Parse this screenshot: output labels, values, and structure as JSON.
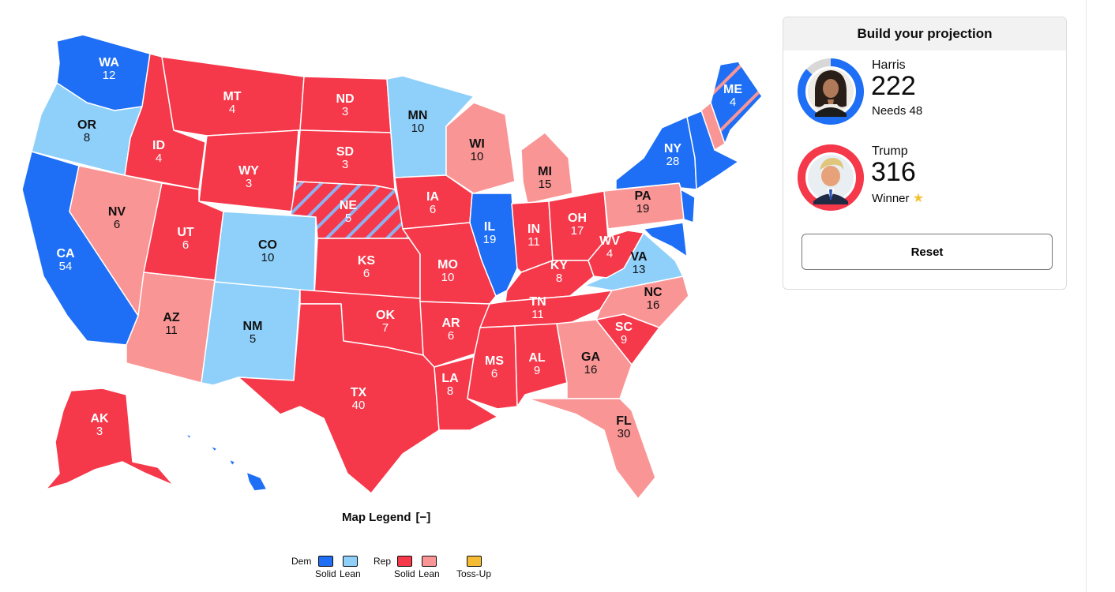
{
  "colors": {
    "dem_solid": "#1e6ff5",
    "dem_lean": "#8fd0fb",
    "rep_solid": "#f5384a",
    "rep_lean": "#fa9595",
    "toss_up": "#f5bb33",
    "stripe": "#8fb0ef"
  },
  "map": {
    "states": [
      {
        "abbr": "WA",
        "ev": "12",
        "rating": "dem_solid"
      },
      {
        "abbr": "OR",
        "ev": "8",
        "rating": "dem_lean"
      },
      {
        "abbr": "CA",
        "ev": "54",
        "rating": "dem_solid"
      },
      {
        "abbr": "NV",
        "ev": "6",
        "rating": "rep_lean"
      },
      {
        "abbr": "ID",
        "ev": "4",
        "rating": "rep_solid"
      },
      {
        "abbr": "MT",
        "ev": "4",
        "rating": "rep_solid"
      },
      {
        "abbr": "WY",
        "ev": "3",
        "rating": "rep_solid"
      },
      {
        "abbr": "UT",
        "ev": "6",
        "rating": "rep_solid"
      },
      {
        "abbr": "AZ",
        "ev": "11",
        "rating": "rep_lean"
      },
      {
        "abbr": "CO",
        "ev": "10",
        "rating": "dem_lean"
      },
      {
        "abbr": "NM",
        "ev": "5",
        "rating": "dem_lean"
      },
      {
        "abbr": "ND",
        "ev": "3",
        "rating": "rep_solid"
      },
      {
        "abbr": "SD",
        "ev": "3",
        "rating": "rep_solid"
      },
      {
        "abbr": "NE",
        "ev": "5",
        "rating": "rep_solid",
        "split": true
      },
      {
        "abbr": "KS",
        "ev": "6",
        "rating": "rep_solid"
      },
      {
        "abbr": "OK",
        "ev": "7",
        "rating": "rep_solid"
      },
      {
        "abbr": "TX",
        "ev": "40",
        "rating": "rep_solid"
      },
      {
        "abbr": "MN",
        "ev": "10",
        "rating": "dem_lean"
      },
      {
        "abbr": "IA",
        "ev": "6",
        "rating": "rep_solid"
      },
      {
        "abbr": "MO",
        "ev": "10",
        "rating": "rep_solid"
      },
      {
        "abbr": "AR",
        "ev": "6",
        "rating": "rep_solid"
      },
      {
        "abbr": "LA",
        "ev": "8",
        "rating": "rep_solid"
      },
      {
        "abbr": "WI",
        "ev": "10",
        "rating": "rep_lean"
      },
      {
        "abbr": "IL",
        "ev": "19",
        "rating": "dem_solid"
      },
      {
        "abbr": "MI",
        "ev": "15",
        "rating": "rep_lean"
      },
      {
        "abbr": "IN",
        "ev": "11",
        "rating": "rep_solid"
      },
      {
        "abbr": "OH",
        "ev": "17",
        "rating": "rep_solid"
      },
      {
        "abbr": "KY",
        "ev": "8",
        "rating": "rep_solid"
      },
      {
        "abbr": "TN",
        "ev": "11",
        "rating": "rep_solid"
      },
      {
        "abbr": "MS",
        "ev": "6",
        "rating": "rep_solid"
      },
      {
        "abbr": "AL",
        "ev": "9",
        "rating": "rep_solid"
      },
      {
        "abbr": "GA",
        "ev": "16",
        "rating": "rep_lean"
      },
      {
        "abbr": "FL",
        "ev": "30",
        "rating": "rep_lean"
      },
      {
        "abbr": "SC",
        "ev": "9",
        "rating": "rep_solid"
      },
      {
        "abbr": "NC",
        "ev": "16",
        "rating": "rep_lean"
      },
      {
        "abbr": "VA",
        "ev": "13",
        "rating": "dem_lean"
      },
      {
        "abbr": "WV",
        "ev": "4",
        "rating": "rep_solid"
      },
      {
        "abbr": "PA",
        "ev": "19",
        "rating": "rep_lean"
      },
      {
        "abbr": "NY",
        "ev": "28",
        "rating": "dem_solid"
      },
      {
        "abbr": "ME",
        "ev": "4",
        "rating": "dem_solid",
        "split": true
      },
      {
        "abbr": "AK",
        "ev": "3",
        "rating": "rep_solid"
      }
    ]
  },
  "legend": {
    "title": "Map Legend",
    "toggle": "[−]",
    "dem_label": "Dem",
    "rep_label": "Rep",
    "solid": "Solid",
    "lean": "Lean",
    "toss_up": "Toss-Up"
  },
  "panel": {
    "title": "Build your projection",
    "reset": "Reset",
    "candidates": [
      {
        "name": "Harris",
        "votes": "222",
        "status": "Needs 48",
        "share": 0.867,
        "color": "#1e6ff5"
      },
      {
        "name": "Trump",
        "votes": "316",
        "status": "Winner",
        "share": 1.0,
        "color": "#f5384a"
      }
    ]
  }
}
